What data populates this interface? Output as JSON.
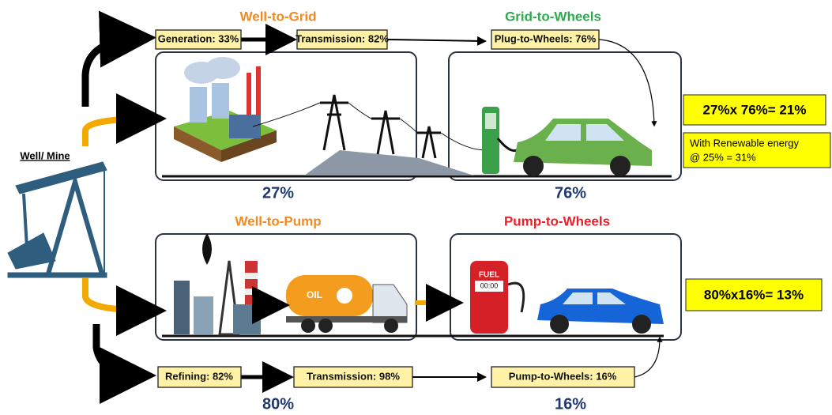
{
  "source": {
    "label": "Well/ Mine"
  },
  "electric": {
    "well_to_grid": {
      "title": "Well-to-Grid",
      "steps": [
        "Generation: 33%",
        "Transmission: 82%"
      ],
      "efficiency": "27%"
    },
    "grid_to_wheels": {
      "title": "Grid-to-Wheels",
      "steps": [
        "Plug-to-Wheels: 76%"
      ],
      "efficiency": "76%"
    },
    "result": "27%x 76%= 21%",
    "renewable_note": [
      "With Renewable energy",
      "@ 25% = 31%"
    ]
  },
  "fuel": {
    "well_to_pump": {
      "title": "Well-to-Pump",
      "steps": [
        "Refining: 82%",
        "Transmission: 98%"
      ],
      "efficiency": "80%"
    },
    "pump_to_wheels": {
      "title": "Pump-to-Wheels",
      "steps": [
        "Pump-to-Wheels: 16%"
      ],
      "efficiency": "16%"
    },
    "result": "80%x16%= 13%"
  },
  "illustrations": {
    "tanker_label": "OIL",
    "pump_label": "FUEL",
    "pump_display": "00:00"
  }
}
